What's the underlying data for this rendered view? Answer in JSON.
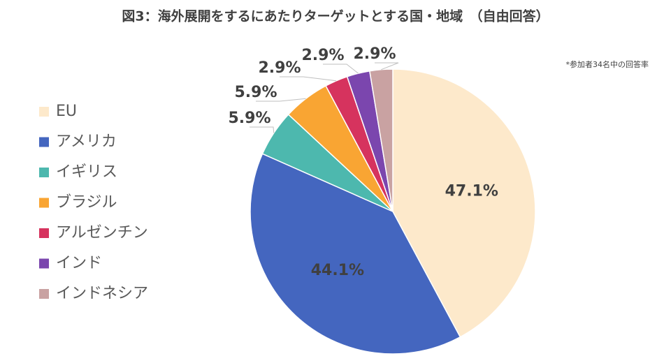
{
  "chart_data": {
    "type": "pie",
    "title": "図3：海外展開をするにあたりターゲットとする国・地域　（自由回答）",
    "note": "*参加者34名中の回答率",
    "categories": [
      "EU",
      "アメリカ",
      "イギリス",
      "ブラジル",
      "アルゼンチン",
      "インド",
      "インドネシア"
    ],
    "values": [
      47.1,
      44.1,
      5.9,
      5.9,
      2.9,
      2.9,
      2.9
    ],
    "value_labels": [
      "47.1%",
      "44.1%",
      "5.9%",
      "5.9%",
      "2.9%",
      "2.9%",
      "2.9%"
    ],
    "colors": [
      "#fde9cb",
      "#4466bf",
      "#4db8ae",
      "#f9a533",
      "#d6335e",
      "#7b46ae",
      "#c9a2a2"
    ],
    "legend": "left"
  }
}
